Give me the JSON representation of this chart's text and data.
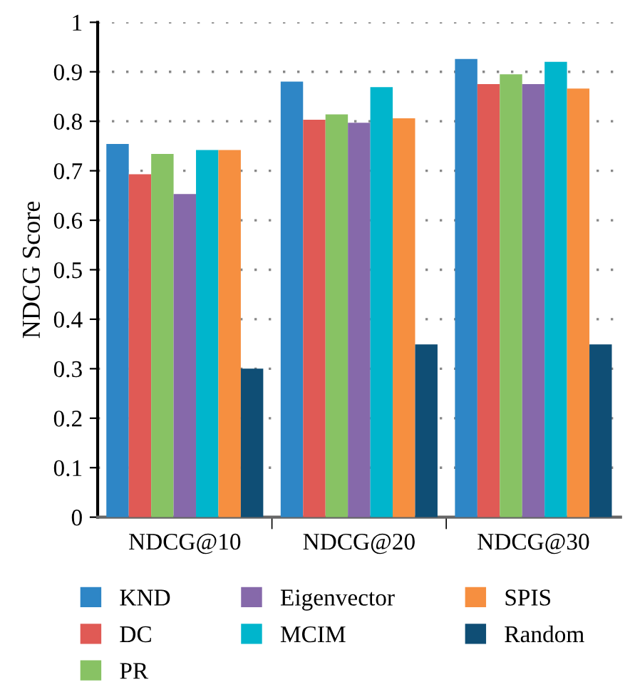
{
  "chart_data": {
    "type": "bar",
    "ylabel": "NDCG Score",
    "categories": [
      "NDCG@10",
      "NDCG@20",
      "NDCG@30"
    ],
    "series": [
      {
        "name": "KND",
        "color": "#2e86c6",
        "values": [
          0.754,
          0.88,
          0.926
        ]
      },
      {
        "name": "DC",
        "color": "#e05a55",
        "values": [
          0.693,
          0.803,
          0.875
        ]
      },
      {
        "name": "PR",
        "color": "#88c264",
        "values": [
          0.734,
          0.814,
          0.895
        ]
      },
      {
        "name": "Eigenvector",
        "color": "#8669aa",
        "values": [
          0.653,
          0.797,
          0.875
        ]
      },
      {
        "name": "MCIM",
        "color": "#00b5cc",
        "values": [
          0.742,
          0.869,
          0.92
        ]
      },
      {
        "name": "SPIS",
        "color": "#f68f40",
        "values": [
          0.742,
          0.806,
          0.866
        ]
      },
      {
        "name": "Random",
        "color": "#0f4e75",
        "values": [
          0.3,
          0.349,
          0.349
        ]
      }
    ],
    "ylim": [
      0,
      1
    ],
    "yticks": [
      0,
      0.1,
      0.2,
      0.3,
      0.4,
      0.5,
      0.6,
      0.7,
      0.8,
      0.9,
      1
    ],
    "grid": "y",
    "legend": "bottom"
  }
}
